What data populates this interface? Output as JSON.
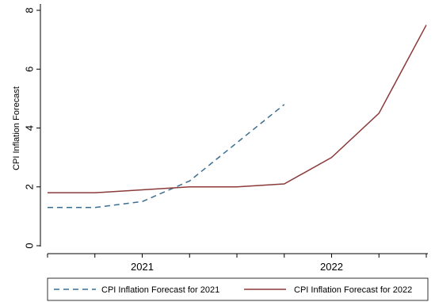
{
  "chart_data": {
    "type": "line",
    "ylabel": "CPI Inflation Forecast",
    "xlabel": "",
    "ylim": [
      0,
      8
    ],
    "yticks": [
      0,
      2,
      4,
      6,
      8
    ],
    "x_group_labels": [
      "2021",
      "2022"
    ],
    "grid": false,
    "legend_position": "bottom",
    "x": [
      1,
      2,
      3,
      4,
      5,
      6,
      7,
      8,
      9
    ],
    "series": [
      {
        "name": "CPI Inflation Forecast for 2021",
        "style": "dashed",
        "color": "#3b6e8f",
        "values": [
          1.3,
          1.3,
          1.5,
          2.2,
          3.5,
          4.8,
          null,
          null,
          null
        ]
      },
      {
        "name": "CPI Inflation Forecast for 2022",
        "style": "solid",
        "color": "#8b3a3a",
        "values": [
          1.8,
          1.8,
          1.9,
          2.0,
          2.0,
          2.1,
          3.0,
          4.5,
          7.5
        ]
      }
    ]
  }
}
